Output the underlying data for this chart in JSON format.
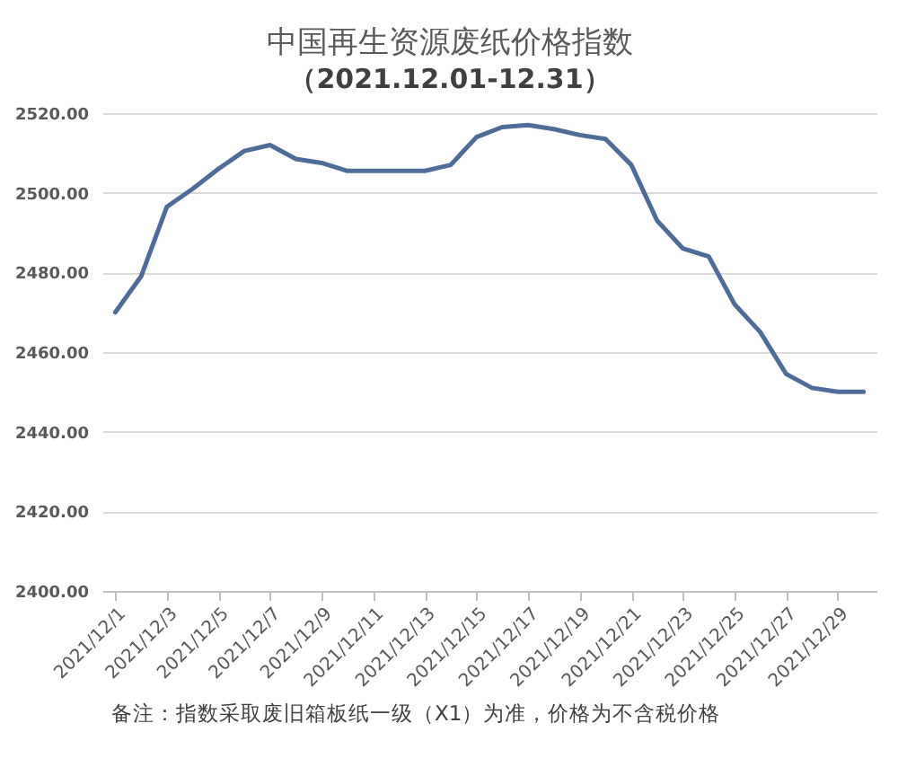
{
  "chart_data": {
    "type": "line",
    "title": "中国再生资源废纸价格指数",
    "subtitle": "（2021.12.01-12.31）",
    "categories": [
      "2021/12/1",
      null,
      "2021/12/3",
      null,
      "2021/12/5",
      null,
      "2021/12/7",
      null,
      "2021/12/9",
      null,
      "2021/12/11",
      null,
      "2021/12/13",
      null,
      "2021/12/15",
      null,
      "2021/12/17",
      null,
      "2021/12/19",
      null,
      "2021/12/21",
      null,
      "2021/12/23",
      null,
      "2021/12/25",
      null,
      "2021/12/27",
      null,
      "2021/12/29",
      null
    ],
    "series": [
      {
        "color": "#4d6c99",
        "values": [
          2470,
          2479,
          2496.5,
          2501,
          2506,
          2510.5,
          2512,
          2508.5,
          2507.5,
          2505.5,
          2505.5,
          2505.5,
          2505.5,
          2507,
          2514,
          2516.5,
          2517,
          2516,
          2514.5,
          2513.5,
          2507,
          2493,
          2486,
          2484,
          2472,
          2465,
          2454.5,
          2451,
          2450,
          2450
        ]
      }
    ],
    "ylim": [
      2400,
      2520
    ],
    "yticks": [
      {
        "value": 2400,
        "label": "2400.00"
      },
      {
        "value": 2420,
        "label": "2420.00"
      },
      {
        "value": 2440,
        "label": "2440.00"
      },
      {
        "value": 2460,
        "label": "2460.00"
      },
      {
        "value": 2480,
        "label": "2480.00"
      },
      {
        "value": 2500,
        "label": "2500.00"
      },
      {
        "value": 2520,
        "label": "2520.00"
      }
    ],
    "grid": "y",
    "line_style": "solid",
    "annotations": [
      "备注：指数采取废旧箱板纸一级（X1）为准，价格为不含税价格"
    ]
  }
}
